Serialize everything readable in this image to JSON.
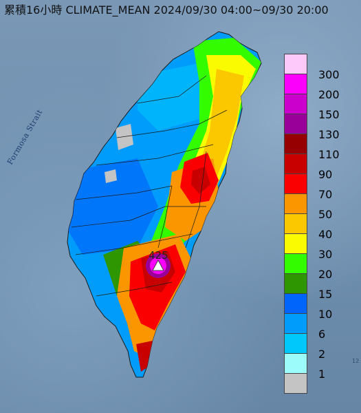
{
  "title": "累積16小時 CLIMATE_MEAN 2024/09/30 04:00~09/30 20:00",
  "strait_label": "Formosa Strait",
  "peak_label": "425",
  "corner_text": "12",
  "legend": {
    "items": [
      {
        "label": "300",
        "color": "#fdc9fb"
      },
      {
        "label": "200",
        "color": "#fb00fb"
      },
      {
        "label": "150",
        "color": "#cc00cc"
      },
      {
        "label": "130",
        "color": "#990099"
      },
      {
        "label": "110",
        "color": "#960000"
      },
      {
        "label": "90",
        "color": "#c80000"
      },
      {
        "label": "70",
        "color": "#fb0000"
      },
      {
        "label": "50",
        "color": "#fb9600"
      },
      {
        "label": "40",
        "color": "#fbc800"
      },
      {
        "label": "30",
        "color": "#fbfb00"
      },
      {
        "label": "20",
        "color": "#33fb00"
      },
      {
        "label": "15",
        "color": "#2d9600"
      },
      {
        "label": "10",
        "color": "#0066fb"
      },
      {
        "label": "6",
        "color": "#009cfb"
      },
      {
        "label": "2",
        "color": "#00c8fb"
      },
      {
        "label": "1",
        "color": "#9cfbfb"
      },
      {
        "label": "",
        "color": "#c4c4c4"
      }
    ]
  }
}
